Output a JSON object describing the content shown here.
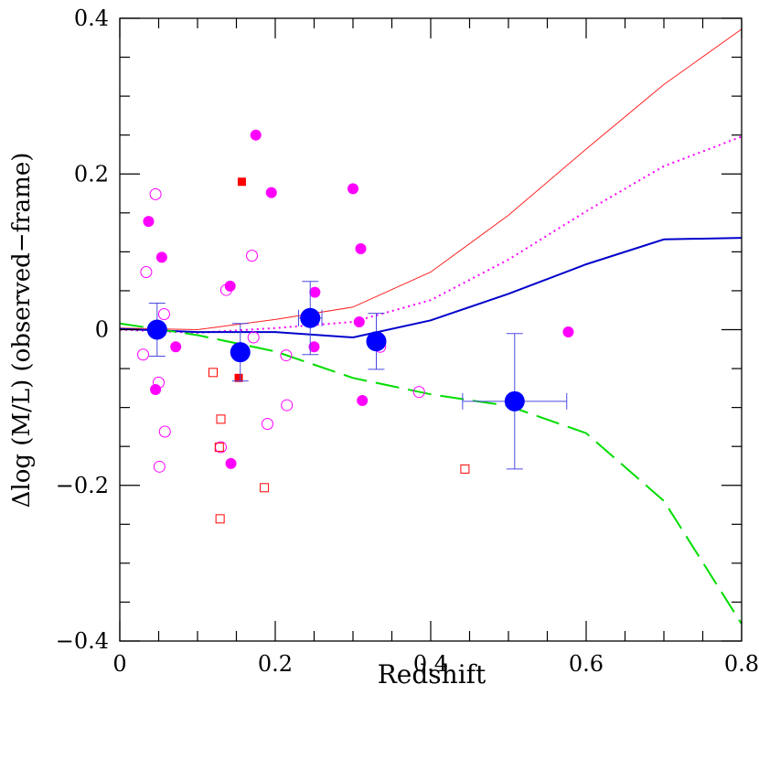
{
  "chart_data": {
    "type": "scatter",
    "xlabel": "Redshift",
    "ylabel": "Δlog (M/L) (observed−frame)",
    "xlim": [
      0,
      0.8
    ],
    "ylim": [
      -0.4,
      0.4
    ],
    "x_ticks": [
      0,
      0.2,
      0.4,
      0.6,
      0.8
    ],
    "x_tick_labels": [
      "0",
      "0.2",
      "0.4",
      "0.6",
      "0.8"
    ],
    "y_ticks": [
      -0.4,
      -0.2,
      0,
      0.2,
      0.4
    ],
    "y_tick_labels": [
      "−0.4",
      "−0.2",
      "0",
      "0.2",
      "0.4"
    ],
    "grid": false,
    "lines": [
      {
        "style": "solid-thin",
        "color": "#ff2020",
        "x": [
          0,
          0.05,
          0.1,
          0.2,
          0.3,
          0.4,
          0.5,
          0.6,
          0.7,
          0.8
        ],
        "y": [
          0.002,
          0.001,
          0.0,
          0.013,
          0.029,
          0.074,
          0.147,
          0.232,
          0.315,
          0.386
        ]
      },
      {
        "style": "dotted",
        "color": "#ff00ff",
        "x": [
          0,
          0.1,
          0.2,
          0.3,
          0.4,
          0.5,
          0.6,
          0.7,
          0.8
        ],
        "y": [
          0.0,
          -0.004,
          0.002,
          0.01,
          0.038,
          0.09,
          0.152,
          0.21,
          0.248
        ]
      },
      {
        "style": "solid",
        "color": "#0000cc",
        "x": [
          0,
          0.1,
          0.2,
          0.3,
          0.4,
          0.5,
          0.6,
          0.7,
          0.8
        ],
        "y": [
          0.001,
          -0.003,
          -0.003,
          -0.01,
          0.012,
          0.046,
          0.084,
          0.116,
          0.118
        ]
      },
      {
        "style": "dashed",
        "color": "#00dd00",
        "x": [
          0,
          0.1,
          0.2,
          0.3,
          0.4,
          0.5,
          0.6,
          0.7,
          0.8
        ],
        "y": [
          0.008,
          -0.007,
          -0.028,
          -0.062,
          -0.083,
          -0.098,
          -0.133,
          -0.22,
          -0.378
        ]
      }
    ],
    "filled_circles": {
      "color": "#ff00ff",
      "x": [
        0.037,
        0.054,
        0.072,
        0.046,
        0.142,
        0.175,
        0.195,
        0.251,
        0.25,
        0.3,
        0.31,
        0.308,
        0.312,
        0.577,
        0.143
      ],
      "y": [
        0.139,
        0.093,
        -0.022,
        -0.077,
        0.056,
        0.25,
        0.176,
        0.048,
        -0.022,
        0.181,
        0.104,
        0.01,
        -0.091,
        -0.003,
        -0.172
      ]
    },
    "open_circles": {
      "color": "#ff00ff",
      "x": [
        0.046,
        0.034,
        0.03,
        0.057,
        0.05,
        0.058,
        0.051,
        0.137,
        0.17,
        0.172,
        0.214,
        0.215,
        0.13,
        0.19,
        0.335,
        0.385
      ],
      "y": [
        0.174,
        0.074,
        -0.032,
        0.02,
        -0.068,
        -0.131,
        -0.176,
        0.051,
        0.095,
        -0.01,
        -0.033,
        -0.097,
        -0.151,
        -0.121,
        -0.022,
        -0.08
      ]
    },
    "filled_squares": {
      "color": "#ff0000",
      "x": [
        0.157,
        0.153
      ],
      "y": [
        0.19,
        -0.062
      ]
    },
    "open_squares": {
      "color": "#ff0000",
      "x": [
        0.12,
        0.13,
        0.128,
        0.186,
        0.129,
        0.444
      ],
      "y": [
        -0.055,
        -0.115,
        -0.151,
        -0.203,
        -0.243,
        -0.179
      ]
    },
    "binned_means": {
      "color": "#0000ff",
      "x": [
        0.048,
        0.155,
        0.245,
        0.33,
        0.508
      ],
      "y": [
        0.0,
        -0.029,
        0.015,
        -0.015,
        -0.092
      ],
      "x_err": [
        0.0,
        0.0,
        0.015,
        0.0,
        0.067
      ],
      "y_err_low": [
        0.034,
        0.037,
        0.047,
        0.036,
        0.087
      ],
      "y_err_high": [
        0.034,
        0.037,
        0.047,
        0.036,
        0.087
      ]
    }
  }
}
